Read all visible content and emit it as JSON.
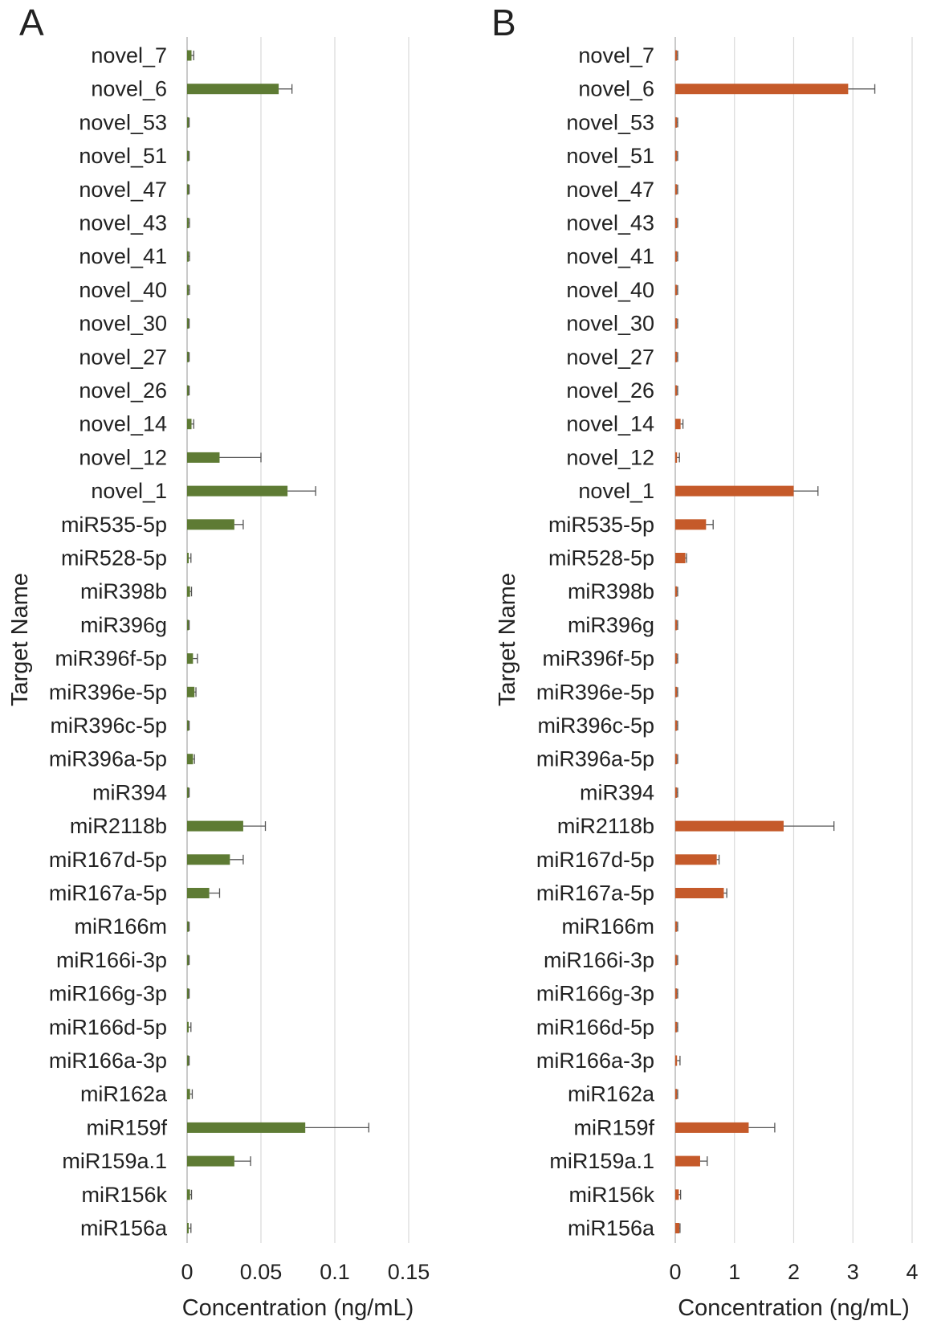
{
  "chart_data": [
    {
      "panel": "A",
      "type": "bar",
      "orientation": "horizontal",
      "ylabel": "Target Name",
      "xlabel": "Concentration  (ng/mL)",
      "xlim": [
        0,
        0.15
      ],
      "xticks": [
        "0",
        "0.05",
        "0.1",
        "0.15"
      ],
      "xtick_values": [
        0,
        0.05,
        0.1,
        0.15
      ],
      "grid": true,
      "bar_color": "#5e7b34",
      "categories": [
        "novel_7",
        "novel_6",
        "novel_53",
        "novel_51",
        "novel_47",
        "novel_43",
        "novel_41",
        "novel_40",
        "novel_30",
        "novel_27",
        "novel_26",
        "novel_14",
        "novel_12",
        "novel_1",
        "miR535-5p",
        "miR528-5p",
        "miR398b",
        "miR396g",
        "miR396f-5p",
        "miR396e-5p",
        "miR396c-5p",
        "miR396a-5p",
        "miR394",
        "miR2118b",
        "miR167d-5p",
        "miR167a-5p",
        "miR166m",
        "miR166i-3p",
        "miR166g-3p",
        "miR166d-5p",
        "miR166a-3p",
        "miR162a",
        "miR159f",
        "miR159a.1",
        "miR156k",
        "miR156a"
      ],
      "values": [
        0.003,
        0.062,
        0.0008,
        0.0008,
        0.0008,
        0.001,
        0.001,
        0.001,
        0.0008,
        0.0008,
        0.0008,
        0.003,
        0.022,
        0.068,
        0.032,
        0.0008,
        0.002,
        0.0008,
        0.004,
        0.005,
        0.0008,
        0.004,
        0.0008,
        0.038,
        0.029,
        0.015,
        0.0008,
        0.0008,
        0.0008,
        0.0008,
        0.0008,
        0.002,
        0.08,
        0.032,
        0.002,
        0.0008
      ],
      "errors": [
        0.0015,
        0.009,
        0.0006,
        0.0006,
        0.0006,
        0.0006,
        0.0006,
        0.0006,
        0.0006,
        0.0006,
        0.0006,
        0.0015,
        0.028,
        0.019,
        0.006,
        0.0018,
        0.001,
        0.0006,
        0.003,
        0.001,
        0.0006,
        0.001,
        0.0006,
        0.015,
        0.009,
        0.007,
        0.0006,
        0.0006,
        0.0006,
        0.0018,
        0.0006,
        0.0015,
        0.043,
        0.011,
        0.001,
        0.0018
      ]
    },
    {
      "panel": "B",
      "type": "bar",
      "orientation": "horizontal",
      "ylabel": "Target Name",
      "xlabel": "Concentration  (ng/mL)",
      "xlim": [
        0,
        4
      ],
      "xticks": [
        "0",
        "1",
        "2",
        "3",
        "4"
      ],
      "xtick_values": [
        0,
        1,
        2,
        3,
        4
      ],
      "grid": true,
      "bar_color": "#c55a2a",
      "categories": [
        "novel_7",
        "novel_6",
        "novel_53",
        "novel_51",
        "novel_47",
        "novel_43",
        "novel_41",
        "novel_40",
        "novel_30",
        "novel_27",
        "novel_26",
        "novel_14",
        "novel_12",
        "novel_1",
        "miR535-5p",
        "miR528-5p",
        "miR398b",
        "miR396g",
        "miR396f-5p",
        "miR396e-5p",
        "miR396c-5p",
        "miR396a-5p",
        "miR394",
        "miR2118b",
        "miR167d-5p",
        "miR167a-5p",
        "miR166m",
        "miR166i-3p",
        "miR166g-3p",
        "miR166d-5p",
        "miR166a-3p",
        "miR162a",
        "miR159f",
        "miR159a.1",
        "miR156k",
        "miR156a"
      ],
      "values": [
        0.03,
        2.92,
        0.03,
        0.03,
        0.03,
        0.03,
        0.03,
        0.03,
        0.03,
        0.03,
        0.03,
        0.09,
        0.03,
        2.0,
        0.52,
        0.17,
        0.03,
        0.03,
        0.03,
        0.03,
        0.03,
        0.03,
        0.03,
        1.83,
        0.7,
        0.82,
        0.03,
        0.03,
        0.03,
        0.03,
        0.03,
        0.03,
        1.24,
        0.42,
        0.06,
        0.07
      ],
      "errors": [
        0.01,
        0.45,
        0.01,
        0.01,
        0.01,
        0.01,
        0.01,
        0.01,
        0.01,
        0.01,
        0.01,
        0.04,
        0.04,
        0.41,
        0.12,
        0.02,
        0.01,
        0.01,
        0.01,
        0.01,
        0.01,
        0.01,
        0.01,
        0.85,
        0.04,
        0.05,
        0.01,
        0.01,
        0.01,
        0.01,
        0.05,
        0.01,
        0.44,
        0.12,
        0.03,
        0.01
      ]
    }
  ]
}
